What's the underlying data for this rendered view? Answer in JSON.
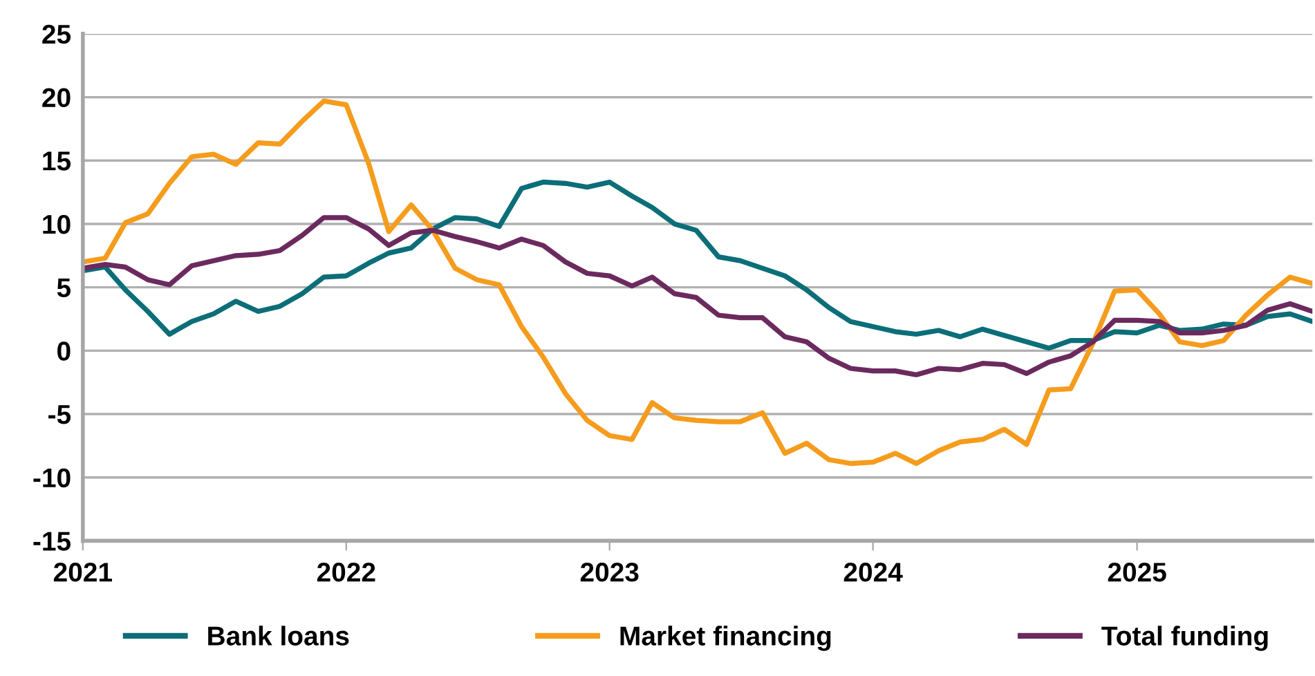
{
  "chart_data": {
    "type": "line",
    "x": [
      "2021-01",
      "2021-02",
      "2021-03",
      "2021-04",
      "2021-05",
      "2021-06",
      "2021-07",
      "2021-08",
      "2021-09",
      "2021-10",
      "2021-11",
      "2021-12",
      "2022-01",
      "2022-02",
      "2022-03",
      "2022-04",
      "2022-05",
      "2022-06",
      "2022-07",
      "2022-08",
      "2022-09",
      "2022-10",
      "2022-11",
      "2022-12",
      "2023-01",
      "2023-02",
      "2023-03",
      "2023-04",
      "2023-05",
      "2023-06",
      "2023-07",
      "2023-08",
      "2023-09",
      "2023-10",
      "2023-11",
      "2023-12",
      "2024-01",
      "2024-02",
      "2024-03",
      "2024-04",
      "2024-05",
      "2024-06",
      "2024-07",
      "2024-08",
      "2024-09",
      "2024-10",
      "2024-11",
      "2024-12",
      "2025-01",
      "2025-02",
      "2025-03",
      "2025-04",
      "2025-05",
      "2025-06",
      "2025-07",
      "2025-08",
      "2025-09"
    ],
    "series": [
      {
        "name": "Bank loans",
        "color": "#0b6e78",
        "values": [
          6.3,
          6.6,
          4.8,
          3.1,
          1.3,
          2.3,
          2.9,
          3.9,
          3.1,
          3.5,
          4.5,
          5.8,
          5.9,
          6.9,
          7.7,
          8.1,
          9.6,
          10.5,
          10.4,
          9.8,
          12.8,
          13.3,
          13.2,
          12.9,
          13.3,
          12.2,
          11.3,
          10.0,
          9.5,
          7.4,
          7.1,
          6.5,
          5.9,
          4.8,
          3.4,
          2.3,
          1.9,
          1.5,
          1.3,
          1.6,
          1.1,
          1.7,
          1.2,
          0.7,
          0.2,
          0.8,
          0.8,
          1.5,
          1.4,
          2.0,
          1.6,
          1.7,
          2.1,
          2.0,
          2.7,
          2.9,
          2.3
        ]
      },
      {
        "name": "Market financing",
        "color": "#f59c1d",
        "values": [
          7.0,
          7.3,
          10.1,
          10.8,
          13.2,
          15.3,
          15.5,
          14.7,
          16.4,
          16.3,
          18.1,
          19.7,
          19.4,
          14.8,
          9.4,
          11.5,
          9.5,
          6.5,
          5.6,
          5.2,
          1.9,
          -0.5,
          -3.4,
          -5.5,
          -6.7,
          -7.0,
          -4.1,
          -5.3,
          -5.5,
          -5.6,
          -5.6,
          -4.9,
          -8.1,
          -7.3,
          -8.6,
          -8.9,
          -8.8,
          -8.1,
          -8.9,
          -7.9,
          -7.2,
          -7.0,
          -6.2,
          -7.4,
          -3.1,
          -3.0,
          0.6,
          4.7,
          4.8,
          2.9,
          0.7,
          0.4,
          0.8,
          2.8,
          4.4,
          5.8,
          5.3
        ]
      },
      {
        "name": "Total funding",
        "color": "#6b2a5e",
        "values": [
          6.5,
          6.8,
          6.6,
          5.6,
          5.2,
          6.7,
          7.1,
          7.5,
          7.6,
          7.9,
          9.1,
          10.5,
          10.5,
          9.6,
          8.3,
          9.3,
          9.5,
          9.0,
          8.6,
          8.1,
          8.8,
          8.3,
          7.0,
          6.1,
          5.9,
          5.1,
          5.8,
          4.5,
          4.2,
          2.8,
          2.6,
          2.6,
          1.1,
          0.7,
          -0.6,
          -1.4,
          -1.6,
          -1.6,
          -1.9,
          -1.4,
          -1.5,
          -1.0,
          -1.1,
          -1.8,
          -0.9,
          -0.4,
          0.7,
          2.4,
          2.4,
          2.3,
          1.4,
          1.4,
          1.6,
          2.0,
          3.2,
          3.7,
          3.1
        ]
      }
    ],
    "xlim": [
      "2021-01",
      "2025-09"
    ],
    "xticks": [
      "2021",
      "2022",
      "2023",
      "2024",
      "2025"
    ],
    "ylim": [
      -15,
      25
    ],
    "yticks": [
      -15,
      -10,
      -5,
      0,
      5,
      10,
      15,
      20,
      25
    ],
    "grid": "y",
    "legend": "bottom",
    "marker": "none",
    "line_style": "solid"
  }
}
